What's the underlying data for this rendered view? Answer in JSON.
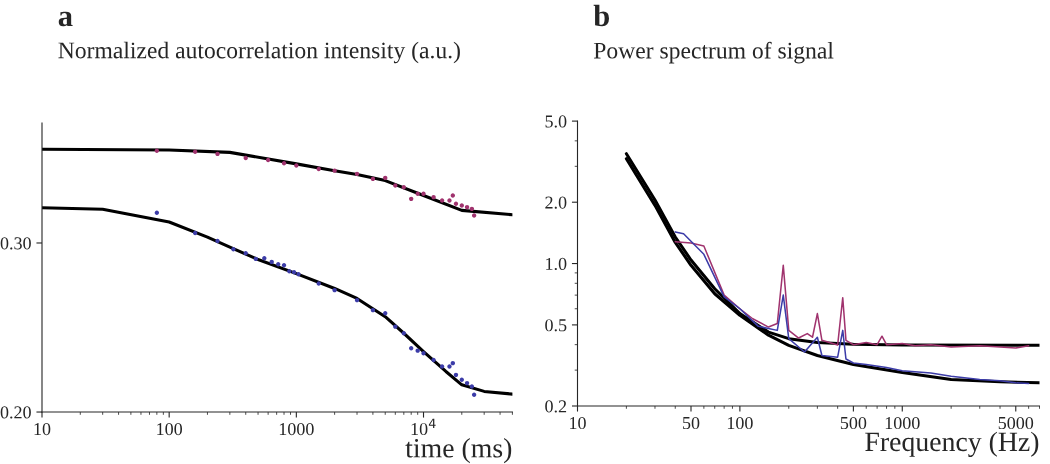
{
  "chart_data": [
    {
      "type": "scatter",
      "title": "a",
      "ylabel": "Normalized autocorrelation intensity (a.u.)",
      "xlabel": "time (ms)",
      "log": "x",
      "xlim": [
        10,
        50000
      ],
      "ylim": [
        0.2,
        0.371
      ],
      "xticks": [
        10,
        100,
        1000,
        {
          "value": 10000,
          "label": "10$^{4}$"
        }
      ],
      "yticks": [
        {
          "value": 0.2,
          "label": "0.20"
        },
        {
          "value": 0.3,
          "label": "0.30"
        }
      ],
      "grid": false,
      "legend": false,
      "marker": "circle",
      "series": [
        {
          "color": "#a0336e",
          "x": [
            80,
            160,
            240,
            400,
            600,
            800,
            1000,
            1500,
            2000,
            3000,
            4000,
            5000,
            6000,
            7000,
            8000,
            9000,
            10000,
            12000,
            14000,
            16000,
            17000,
            18000,
            20000,
            22000,
            24000,
            25000
          ],
          "values": [
            0.3546,
            0.354,
            0.3527,
            0.3503,
            0.3491,
            0.3472,
            0.3458,
            0.3438,
            0.3428,
            0.3409,
            0.3379,
            0.3385,
            0.334,
            0.333,
            0.3261,
            0.3291,
            0.3291,
            0.3271,
            0.3251,
            0.3251,
            0.3281,
            0.3232,
            0.3222,
            0.3212,
            0.3202,
            0.3163
          ]
        },
        {
          "color": "#3c3ca8",
          "x": [
            80,
            160,
            240,
            320,
            400,
            480,
            560,
            640,
            720,
            800,
            880,
            960,
            1040,
            1500,
            2000,
            3000,
            4000,
            5000,
            6000,
            7000,
            8000,
            9000,
            10000,
            12000,
            14000,
            16000,
            17000,
            18000,
            20000,
            22000,
            24000,
            25000
          ],
          "values": [
            0.3179,
            0.3059,
            0.3012,
            0.2963,
            0.2939,
            0.2906,
            0.291,
            0.2888,
            0.2874,
            0.2868,
            0.2833,
            0.2827,
            0.2815,
            0.276,
            0.2721,
            0.2662,
            0.2603,
            0.2584,
            0.2505,
            0.2466,
            0.2377,
            0.2363,
            0.2348,
            0.2308,
            0.2269,
            0.2269,
            0.2289,
            0.222,
            0.2191,
            0.2171,
            0.2151,
            0.2102
          ]
        },
        {
          "type": "line",
          "color": "#000000",
          "marker": "none",
          "x": [
            10,
            100,
            300,
            1000,
            2000,
            3000,
            5000,
            10000,
            20000,
            50000
          ],
          "values": [
            0.3554,
            0.355,
            0.3536,
            0.3468,
            0.3428,
            0.3405,
            0.3369,
            0.3281,
            0.3193,
            0.3167
          ]
        },
        {
          "type": "line",
          "color": "#000000",
          "marker": "none",
          "x": [
            10,
            30,
            100,
            200,
            300,
            500,
            1000,
            2000,
            3000,
            5000,
            7000,
            10000,
            15000,
            20000,
            30000,
            50000
          ],
          "values": [
            0.3208,
            0.32,
            0.3124,
            0.3035,
            0.2976,
            0.2902,
            0.2819,
            0.2731,
            0.2672,
            0.2564,
            0.2466,
            0.2358,
            0.224,
            0.2161,
            0.2122,
            0.2106
          ]
        }
      ]
    },
    {
      "type": "line",
      "title": "b",
      "ylabel": "Power spectrum of signal",
      "xlabel": "Frequency (Hz)",
      "log": "xy",
      "xlim": [
        10,
        7000
      ],
      "ylim": [
        0.2,
        5.0
      ],
      "xticks": [
        10,
        50,
        100,
        500,
        1000,
        5000
      ],
      "yticks": [
        {
          "value": 0.2,
          "label": "0.2"
        },
        {
          "value": 0.5,
          "label": "0.5"
        },
        {
          "value": 1.0,
          "label": "1.0"
        },
        {
          "value": 2.0,
          "label": "2.0"
        },
        {
          "value": 5.0,
          "label": "5.0"
        }
      ],
      "grid": false,
      "legend": false,
      "marker": "none",
      "series": [
        {
          "color": "#a0336e",
          "x": [
            40,
            50,
            60,
            80,
            100,
            120,
            150,
            170,
            185,
            200,
            230,
            260,
            280,
            300,
            320,
            400,
            430,
            450,
            500,
            600,
            700,
            750,
            800,
            1000,
            1200,
            1500,
            2000,
            3000,
            4000,
            5000,
            6000
          ],
          "values": [
            1.28,
            1.26,
            1.22,
            0.7,
            0.6,
            0.536,
            0.488,
            0.508,
            0.98,
            0.47,
            0.431,
            0.453,
            0.435,
            0.568,
            0.42,
            0.398,
            0.68,
            0.42,
            0.4,
            0.41,
            0.4,
            0.44,
            0.4,
            0.405,
            0.395,
            0.4,
            0.39,
            0.395,
            0.39,
            0.385,
            0.395
          ]
        },
        {
          "color": "#3c3ca8",
          "x": [
            40,
            45,
            60,
            80,
            100,
            130,
            170,
            185,
            200,
            250,
            300,
            320,
            400,
            430,
            450,
            500,
            600,
            800,
            1000,
            1500,
            2000,
            3000,
            4000,
            5000,
            6000
          ],
          "values": [
            1.43,
            1.4,
            1.11,
            0.686,
            0.6,
            0.492,
            0.47,
            0.7,
            0.428,
            0.368,
            0.435,
            0.354,
            0.347,
            0.47,
            0.34,
            0.325,
            0.32,
            0.309,
            0.298,
            0.29,
            0.28,
            0.27,
            0.266,
            0.26,
            0.258
          ]
        },
        {
          "color": "#000000",
          "x": [
            20,
            30,
            40,
            50,
            70,
            100,
            150,
            200,
            300,
            500,
            1000,
            7000
          ],
          "values": [
            3.46,
            2.05,
            1.35,
            1.04,
            0.752,
            0.568,
            0.461,
            0.428,
            0.41,
            0.402,
            0.398,
            0.397
          ]
        },
        {
          "color": "#000000",
          "x": [
            20,
            30,
            40,
            50,
            70,
            100,
            150,
            200,
            300,
            500,
            1000,
            2000,
            4000,
            7000
          ],
          "values": [
            3.27,
            1.93,
            1.27,
            0.98,
            0.711,
            0.557,
            0.445,
            0.397,
            0.354,
            0.32,
            0.292,
            0.27,
            0.263,
            0.26
          ]
        }
      ]
    }
  ]
}
